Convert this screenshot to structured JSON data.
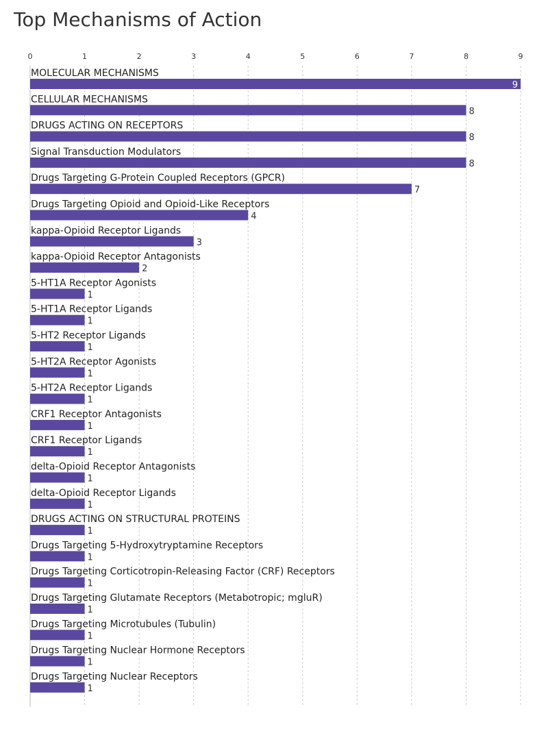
{
  "chart_data": {
    "type": "bar",
    "orientation": "horizontal",
    "title": "Top Mechanisms of Action",
    "xlabel": "",
    "ylabel": "",
    "xlim": [
      0,
      9
    ],
    "x_ticks": [
      "0",
      "1",
      "2",
      "3",
      "4",
      "5",
      "6",
      "7",
      "8",
      "9"
    ],
    "grid": "vertical dashed",
    "bar_color": "#5a48a0",
    "categories": [
      "MOLECULAR MECHANISMS",
      "CELLULAR MECHANISMS",
      "DRUGS ACTING ON RECEPTORS",
      "Signal Transduction Modulators",
      "Drugs Targeting G-Protein Coupled Receptors (GPCR)",
      "Drugs Targeting Opioid and Opioid-Like Receptors",
      "kappa-Opioid Receptor Ligands",
      "kappa-Opioid Receptor Antagonists",
      "5-HT1A Receptor Agonists",
      "5-HT1A Receptor Ligands",
      "5-HT2 Receptor Ligands",
      "5-HT2A Receptor Agonists",
      "5-HT2A Receptor Ligands",
      "CRF1 Receptor Antagonists",
      "CRF1 Receptor Ligands",
      "delta-Opioid Receptor Antagonists",
      "delta-Opioid Receptor Ligands",
      "DRUGS ACTING ON STRUCTURAL PROTEINS",
      "Drugs Targeting 5-Hydroxytryptamine Receptors",
      "Drugs Targeting Corticotropin-Releasing Factor (CRF) Receptors",
      "Drugs Targeting Glutamate Receptors (Metabotropic; mgluR)",
      "Drugs Targeting Microtubules (Tubulin)",
      "Drugs Targeting Nuclear Hormone Receptors",
      "Drugs Targeting Nuclear Receptors"
    ],
    "values": [
      9,
      8,
      8,
      8,
      7,
      4,
      3,
      2,
      1,
      1,
      1,
      1,
      1,
      1,
      1,
      1,
      1,
      1,
      1,
      1,
      1,
      1,
      1,
      1
    ]
  }
}
